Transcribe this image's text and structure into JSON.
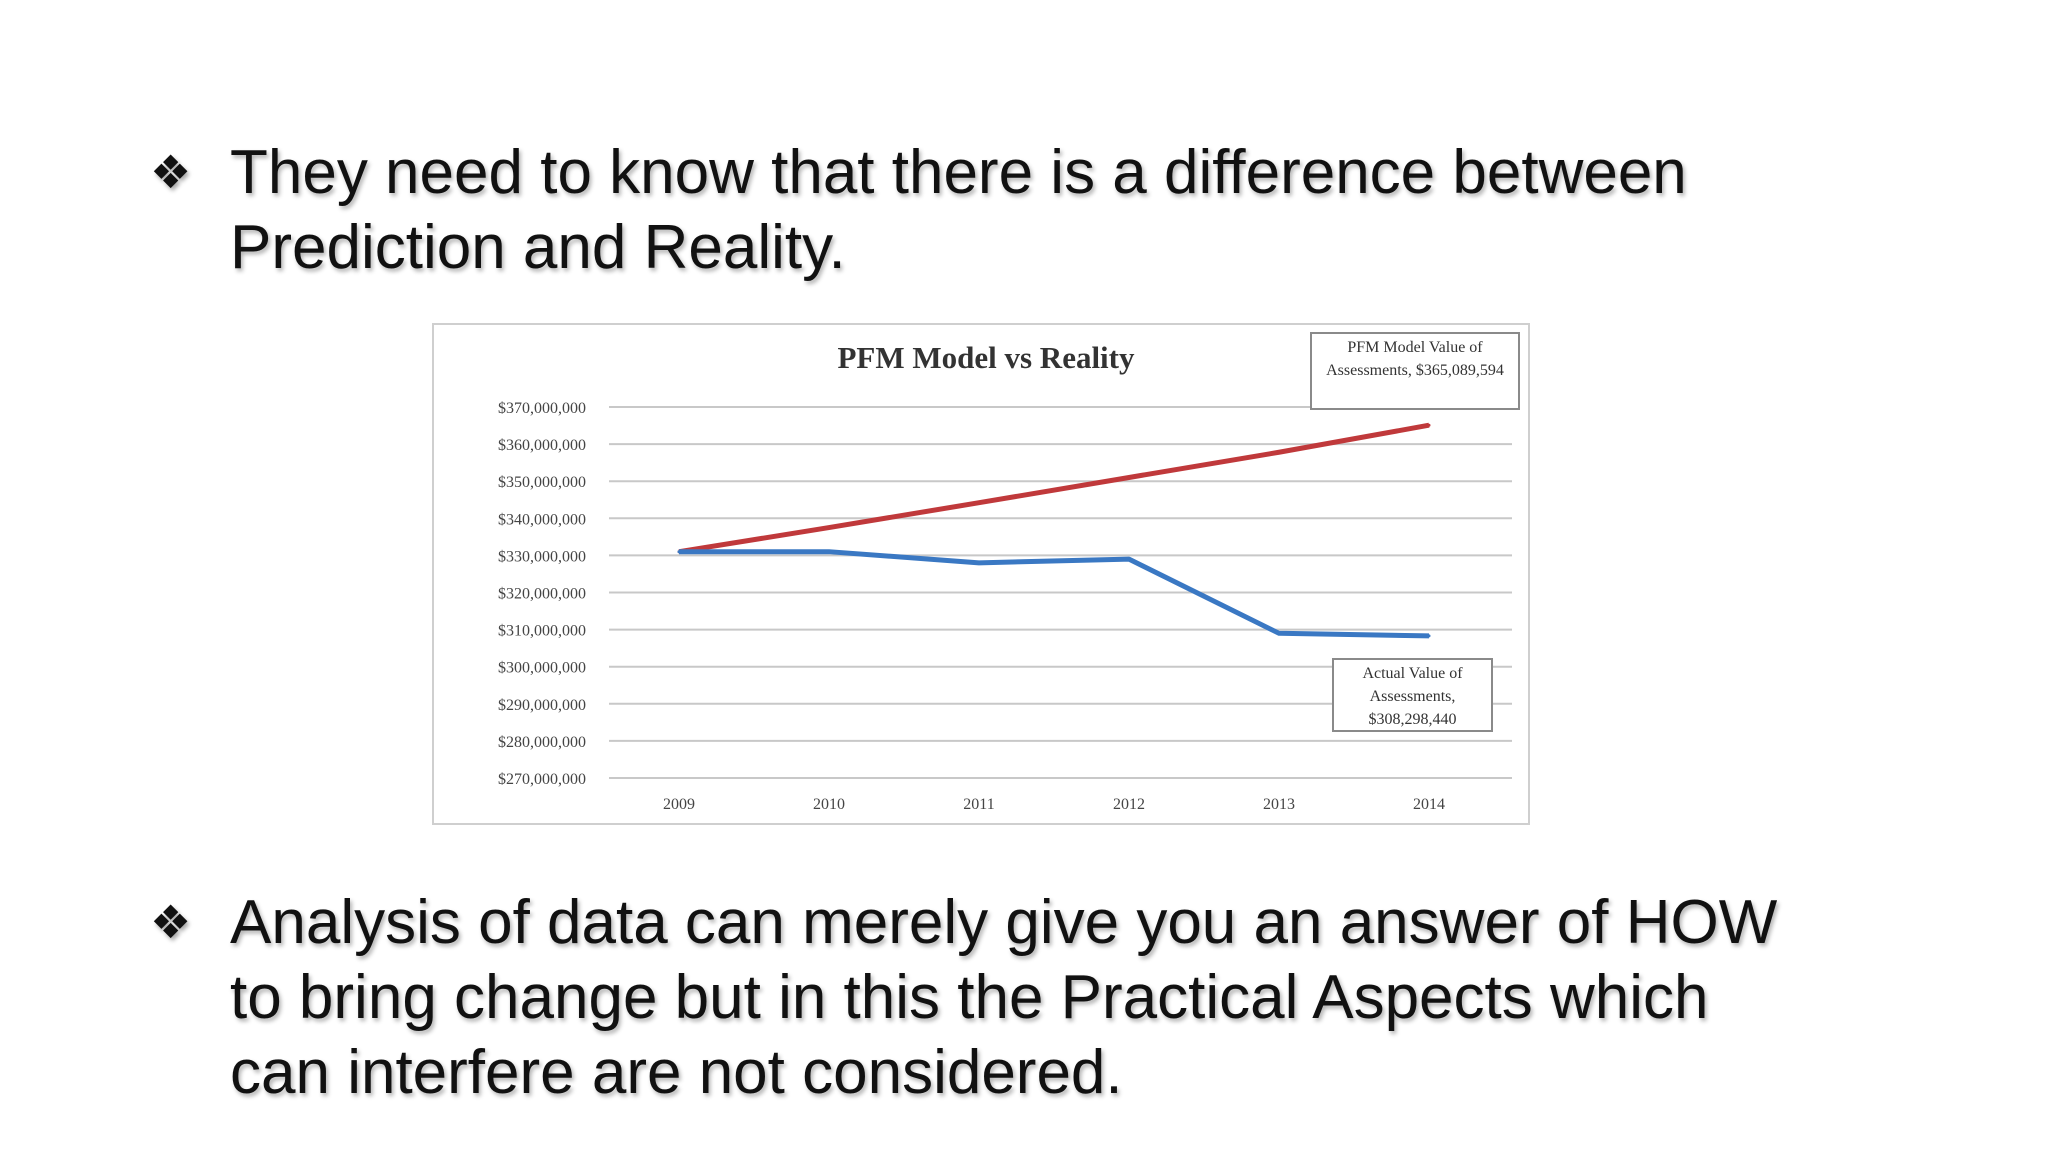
{
  "slide": {
    "bullet_glyph": "❖",
    "bullets": [
      {
        "text": "They need to know that there is a difference between\nPrediction and Reality."
      },
      {
        "text": "Analysis of data  can merely give you an answer of HOW\nto bring change  but in this the Practical Aspects which\ncan interfere are not considered."
      }
    ]
  },
  "chart_data": {
    "type": "line",
    "title": "PFM Model vs Reality",
    "xlabel": "",
    "ylabel": "",
    "categories": [
      "2009",
      "2010",
      "2011",
      "2012",
      "2013",
      "2014"
    ],
    "ylim": [
      270000000,
      370000000
    ],
    "yticks": [
      370000000,
      360000000,
      350000000,
      340000000,
      330000000,
      320000000,
      310000000,
      300000000,
      290000000,
      280000000,
      270000000
    ],
    "ytick_labels": [
      "$370,000,000",
      "$360,000,000",
      "$350,000,000",
      "$340,000,000",
      "$330,000,000",
      "$320,000,000",
      "$310,000,000",
      "$300,000,000",
      "$290,000,000",
      "$280,000,000",
      "$270,000,000"
    ],
    "grid": true,
    "legend": "none",
    "series": [
      {
        "color": "#c0393b",
        "values": [
          331000000,
          337500000,
          344200000,
          351000000,
          357800000,
          365089594
        ]
      },
      {
        "color": "#3a78c3",
        "values": [
          331000000,
          331000000,
          328000000,
          329000000,
          309000000,
          308298440
        ]
      }
    ],
    "annotations": [
      {
        "text": "PFM Model Value of Assessments, $365,089,594",
        "series_index": 0
      },
      {
        "text": "Actual Value of Assessments, $308,298,440",
        "series_index": 1
      }
    ]
  }
}
